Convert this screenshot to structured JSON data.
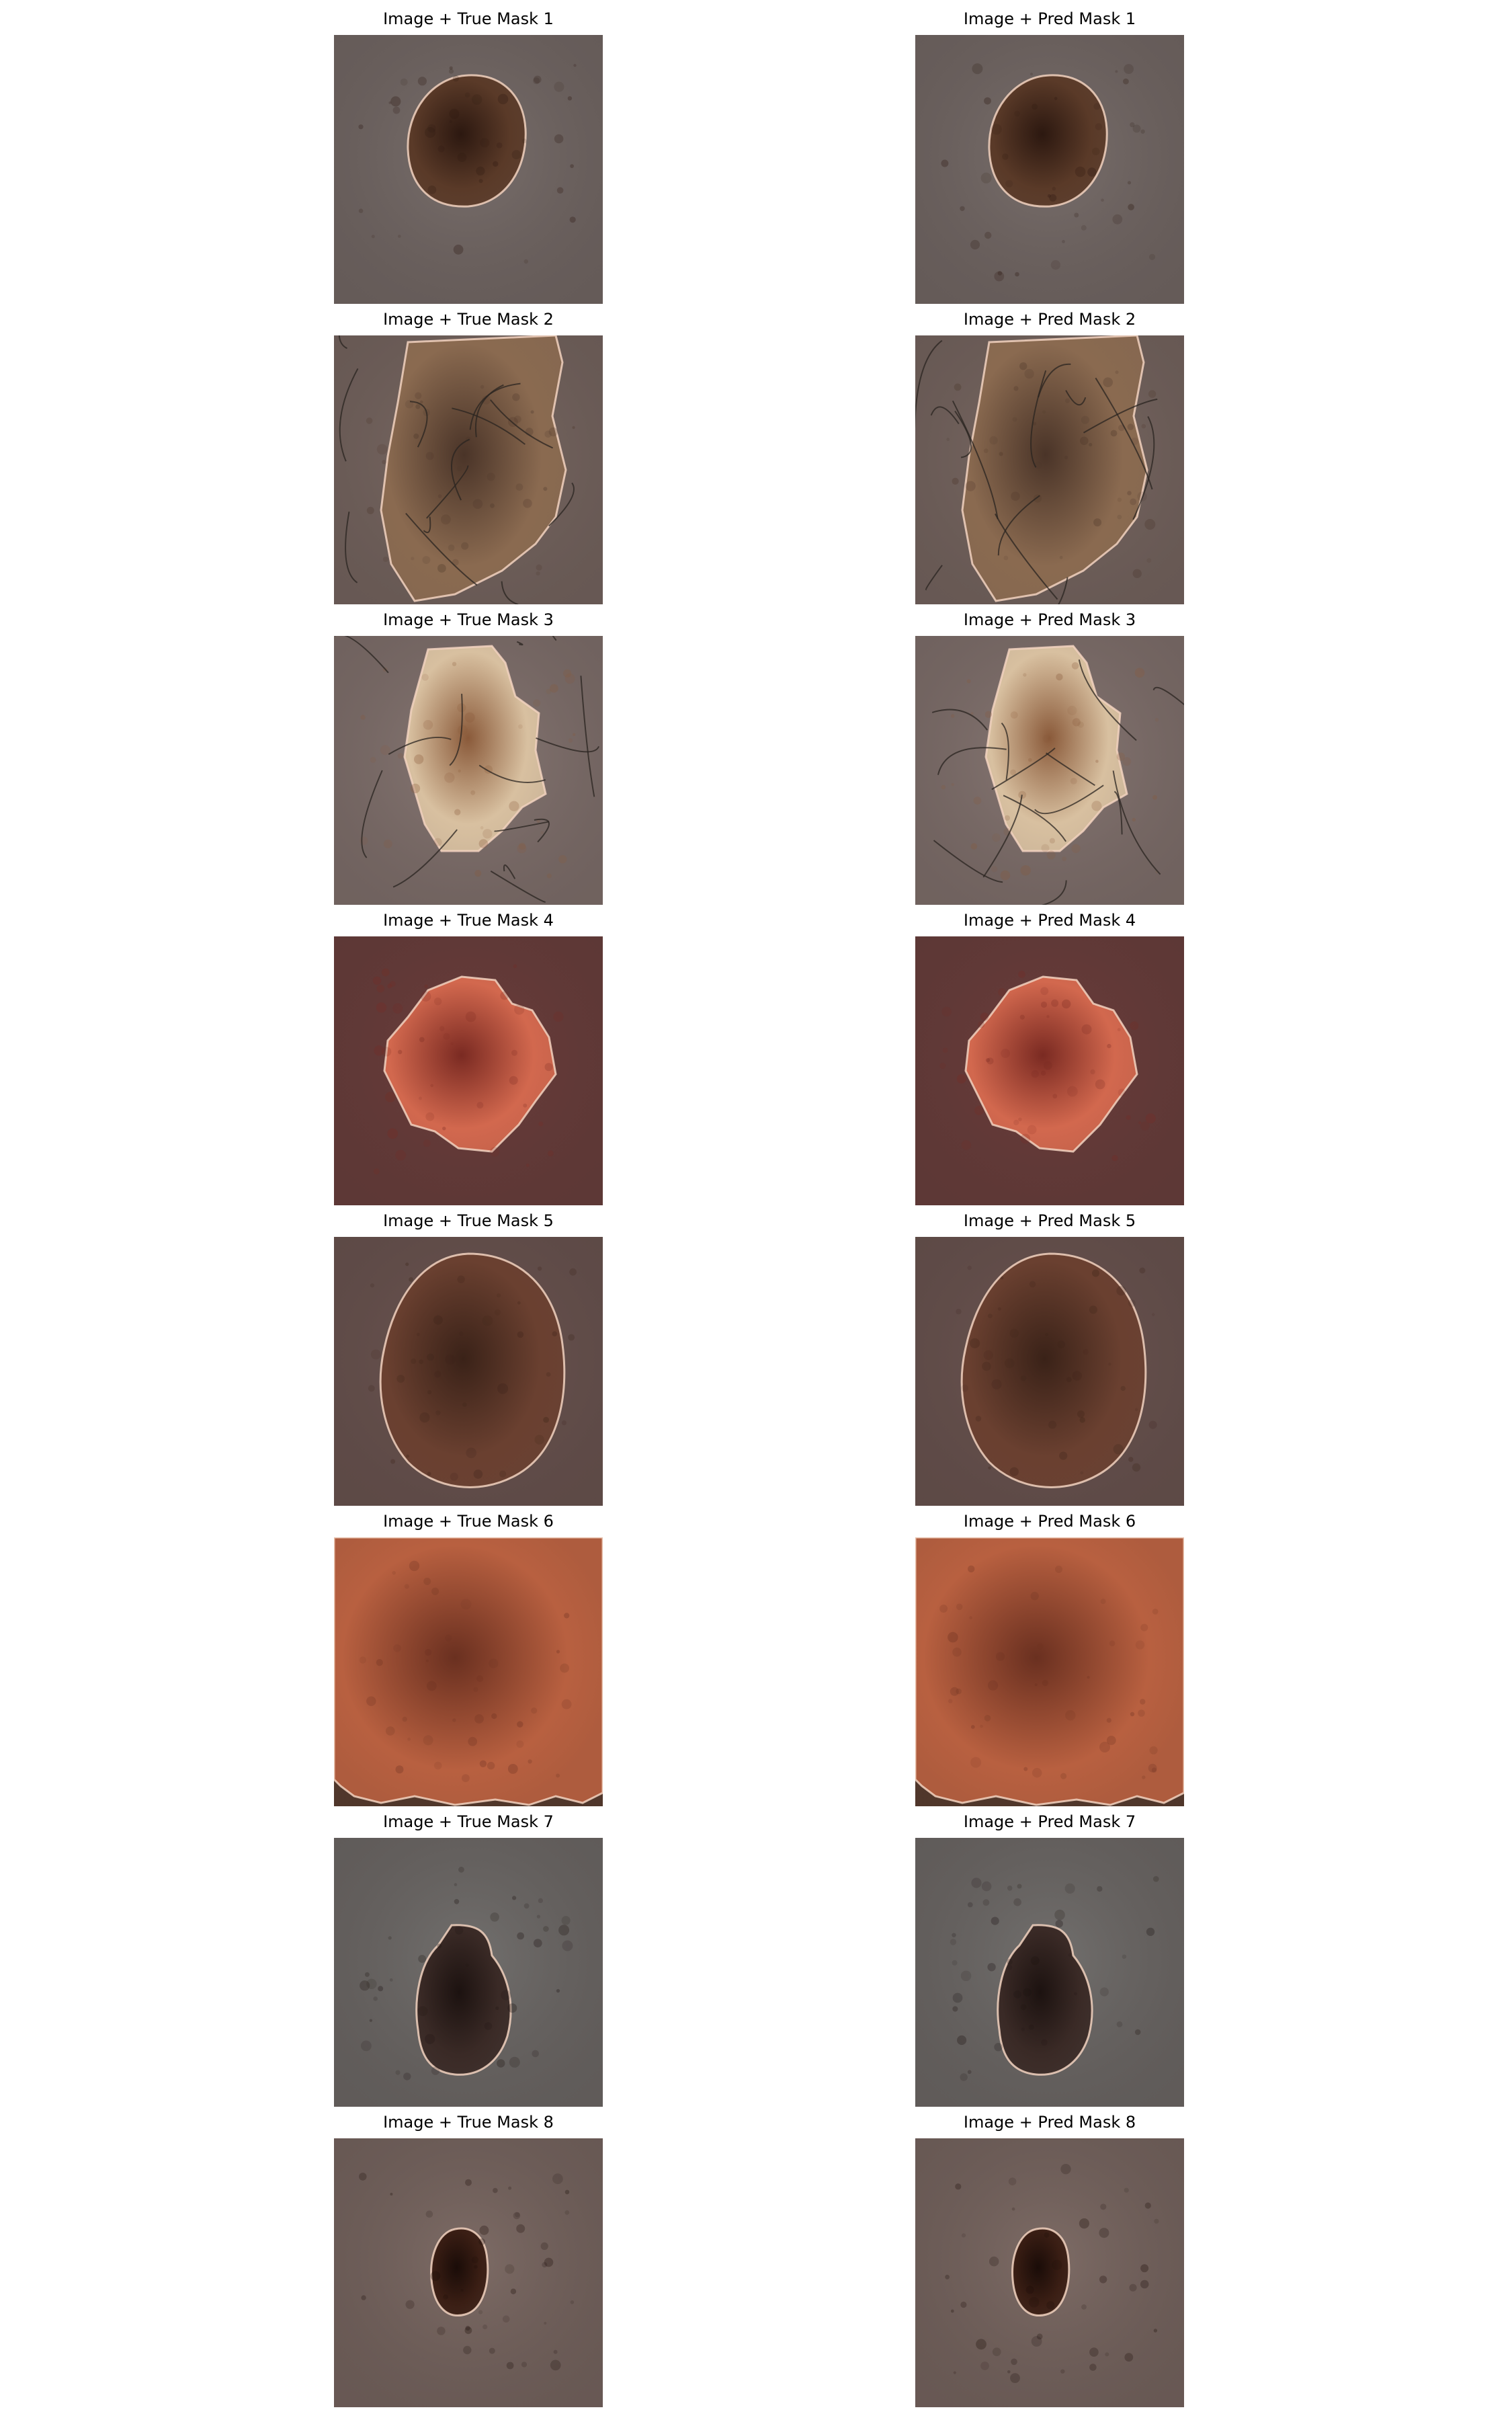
{
  "figure": {
    "panels": [
      {
        "title": "Image + True Mask 1",
        "row": 1,
        "column": "true",
        "lesion": "round-small",
        "skin": "#7a706d",
        "lesion_color": "#5a3a28",
        "lesion_dark": "#2c1810",
        "hair": false
      },
      {
        "title": "Image + Pred Mask 1",
        "row": 1,
        "column": "pred",
        "lesion": "round-small",
        "skin": "#7a706d",
        "lesion_color": "#5a3a28",
        "lesion_dark": "#2c1810",
        "hair": false
      },
      {
        "title": "Image + True Mask 2",
        "row": 2,
        "column": "true",
        "lesion": "large-irregular",
        "skin": "#7d6c66",
        "lesion_color": "#8a6a50",
        "lesion_dark": "#4a3428",
        "hair": true
      },
      {
        "title": "Image + Pred Mask 2",
        "row": 2,
        "column": "pred",
        "lesion": "large-irregular",
        "skin": "#7d6c66",
        "lesion_color": "#8a6a50",
        "lesion_dark": "#4a3428",
        "hair": true
      },
      {
        "title": "Image + True Mask 3",
        "row": 3,
        "column": "true",
        "lesion": "pale-hairy",
        "skin": "#8a7a76",
        "lesion_color": "#d8c0a0",
        "lesion_dark": "#8a5a3a",
        "hair": true
      },
      {
        "title": "Image + Pred Mask 3",
        "row": 3,
        "column": "pred",
        "lesion": "pale-hairy",
        "skin": "#8a7a76",
        "lesion_color": "#d8c0a0",
        "lesion_dark": "#8a5a3a",
        "hair": true
      },
      {
        "title": "Image + True Mask 4",
        "row": 4,
        "column": "true",
        "lesion": "red-irregular",
        "skin": "#6e3c3a",
        "lesion_color": "#d2684e",
        "lesion_dark": "#7a2a22",
        "hair": false
      },
      {
        "title": "Image + Pred Mask 4",
        "row": 4,
        "column": "pred",
        "lesion": "red-irregular",
        "skin": "#6e3c3a",
        "lesion_color": "#d2684e",
        "lesion_dark": "#7a2a22",
        "hair": false
      },
      {
        "title": "Image + True Mask 5",
        "row": 5,
        "column": "true",
        "lesion": "large-oval",
        "skin": "#6e5652",
        "lesion_color": "#6a4030",
        "lesion_dark": "#3a2218",
        "hair": false
      },
      {
        "title": "Image + Pred Mask 5",
        "row": 5,
        "column": "pred",
        "lesion": "large-oval",
        "skin": "#6e5652",
        "lesion_color": "#6a4030",
        "lesion_dark": "#3a2218",
        "hair": false
      },
      {
        "title": "Image + True Mask 6",
        "row": 6,
        "column": "true",
        "lesion": "full-frame",
        "skin": "#5a3a2a",
        "lesion_color": "#b86040",
        "lesion_dark": "#6a3020",
        "hair": false
      },
      {
        "title": "Image + Pred Mask 6",
        "row": 6,
        "column": "pred",
        "lesion": "full-frame",
        "skin": "#5a3a2a",
        "lesion_color": "#b86040",
        "lesion_dark": "#6a3020",
        "hair": false
      },
      {
        "title": "Image + True Mask 7",
        "row": 7,
        "column": "true",
        "lesion": "dark-oval",
        "skin": "#72706e",
        "lesion_color": "#3a2a26",
        "lesion_dark": "#1c1210",
        "hair": false
      },
      {
        "title": "Image + Pred Mask 7",
        "row": 7,
        "column": "pred",
        "lesion": "dark-oval",
        "skin": "#72706e",
        "lesion_color": "#3a2a26",
        "lesion_dark": "#1c1210",
        "hair": false
      },
      {
        "title": "Image + True Mask 8",
        "row": 8,
        "column": "true",
        "lesion": "tiny-dark",
        "skin": "#7e6c66",
        "lesion_color": "#3a1e14",
        "lesion_dark": "#1a0c08",
        "hair": false
      },
      {
        "title": "Image + Pred Mask 8",
        "row": 8,
        "column": "pred",
        "lesion": "tiny-dark",
        "skin": "#7e6c66",
        "lesion_color": "#3a1e14",
        "lesion_dark": "#1a0c08",
        "hair": false
      }
    ]
  }
}
